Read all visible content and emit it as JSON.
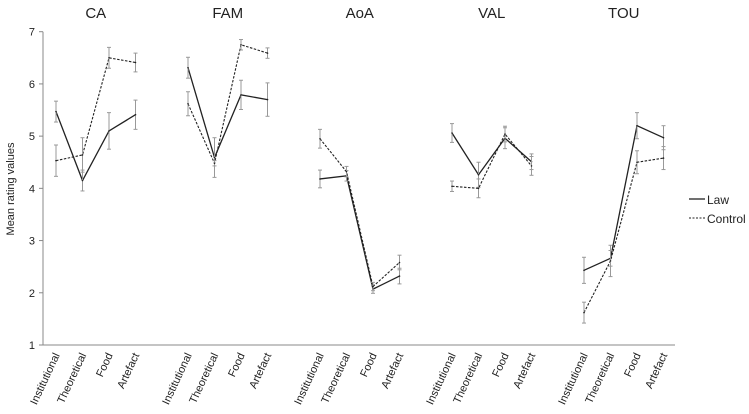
{
  "chart_data": {
    "type": "line",
    "ylabel": "Mean rating values",
    "ylim": [
      1,
      7
    ],
    "yticks": [
      1,
      2,
      3,
      4,
      5,
      6,
      7
    ],
    "grid": false,
    "legend_position": "right",
    "categories": [
      "Institutional",
      "Theoretical",
      "Food",
      "Artefact"
    ],
    "series_names": [
      "Law",
      "Control"
    ],
    "panels": [
      {
        "title": "CA",
        "series": [
          {
            "name": "Law",
            "values": [
              5.47,
              4.15,
              5.1,
              5.41
            ],
            "errors": [
              0.2,
              0.2,
              0.35,
              0.28
            ]
          },
          {
            "name": "Control",
            "values": [
              4.53,
              4.64,
              6.5,
              6.41
            ],
            "errors": [
              0.3,
              0.33,
              0.2,
              0.18
            ]
          }
        ]
      },
      {
        "title": "FAM",
        "series": [
          {
            "name": "Law",
            "values": [
              6.31,
              4.59,
              5.79,
              5.7
            ],
            "errors": [
              0.2,
              0.38,
              0.28,
              0.32
            ]
          },
          {
            "name": "Control",
            "values": [
              5.62,
              4.48,
              6.75,
              6.59
            ],
            "errors": [
              0.23,
              0.05,
              0.1,
              0.1
            ]
          }
        ]
      },
      {
        "title": "AoA",
        "series": [
          {
            "name": "Law",
            "values": [
              4.18,
              4.24,
              2.07,
              2.32
            ],
            "errors": [
              0.17,
              0.1,
              0.08,
              0.15
            ]
          },
          {
            "name": "Control",
            "values": [
              4.95,
              4.32,
              2.12,
              2.58
            ],
            "errors": [
              0.18,
              0.1,
              0.08,
              0.14
            ]
          }
        ]
      },
      {
        "title": "VAL",
        "series": [
          {
            "name": "Law",
            "values": [
              5.06,
              4.26,
              4.96,
              4.51
            ],
            "errors": [
              0.18,
              0.24,
              0.2,
              0.15
            ]
          },
          {
            "name": "Control",
            "values": [
              4.04,
              4.0,
              5.04,
              4.43
            ],
            "errors": [
              0.1,
              0.18,
              0.15,
              0.18
            ]
          }
        ]
      },
      {
        "title": "TOU",
        "series": [
          {
            "name": "Law",
            "values": [
              2.43,
              2.66,
              5.2,
              4.97
            ],
            "errors": [
              0.25,
              0.15,
              0.25,
              0.23
            ]
          },
          {
            "name": "Control",
            "values": [
              1.62,
              2.61,
              4.5,
              4.58
            ],
            "errors": [
              0.2,
              0.3,
              0.22,
              0.22
            ]
          }
        ]
      }
    ]
  }
}
